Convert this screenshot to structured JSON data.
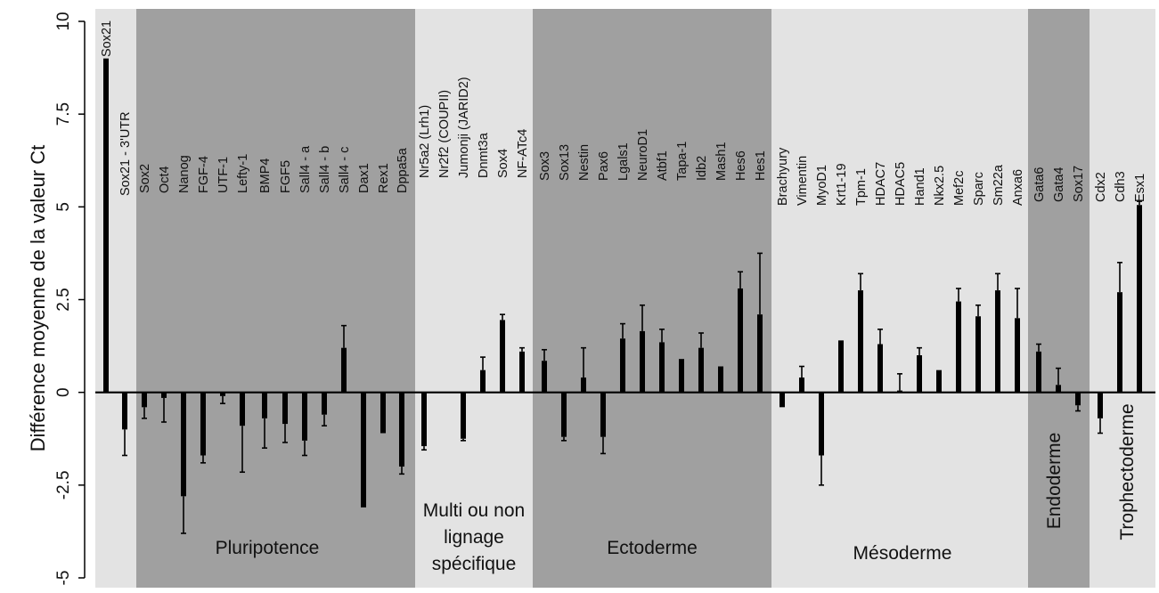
{
  "chart_data": {
    "type": "bar",
    "title": "",
    "ylabel": "Différence moyenne de la valeur Ct",
    "xlabel": "",
    "ylim": [
      -5,
      10
    ],
    "yticks": [
      "-5",
      "-2.5",
      "0",
      "2.5",
      "5",
      "7.5",
      "10"
    ],
    "yticks_values": [
      -5,
      -2.5,
      0,
      2.5,
      5,
      7.5,
      10
    ],
    "grid": false,
    "colors": {
      "dark_band": "#a0a0a0",
      "light_band": "#e3e3e3",
      "bar": "#000000"
    },
    "groups": [
      {
        "label": "",
        "shade": "light",
        "genes": [
          {
            "name": "Sox21",
            "value": 9.0,
            "err": 0
          },
          {
            "name": "Sox21 - 3'UTR",
            "value": -1.0,
            "err": 0.7
          }
        ]
      },
      {
        "label": "Pluripotence",
        "shade": "dark",
        "genes": [
          {
            "name": "Sox2",
            "value": -0.4,
            "err": 0.3
          },
          {
            "name": "Oct4",
            "value": -0.15,
            "err": 0.65
          },
          {
            "name": "Nanog",
            "value": -2.8,
            "err": 1.0
          },
          {
            "name": "FGF-4",
            "value": -1.7,
            "err": 0.2
          },
          {
            "name": "UTF-1",
            "value": -0.1,
            "err": 0.2
          },
          {
            "name": "Lefty-1",
            "value": -0.9,
            "err": 1.25
          },
          {
            "name": "BMP4",
            "value": -0.7,
            "err": 0.8
          },
          {
            "name": "FGF5",
            "value": -0.85,
            "err": 0.5
          },
          {
            "name": "Sall4 - a",
            "value": -1.3,
            "err": 0.4
          },
          {
            "name": "Sall4 - b",
            "value": -0.6,
            "err": 0.3
          },
          {
            "name": "Sall4 - c",
            "value": 1.2,
            "err": 0.6
          },
          {
            "name": "Dax1",
            "value": -3.1,
            "err": 0
          },
          {
            "name": "Rex1",
            "value": -1.1,
            "err": 0
          },
          {
            "name": "Dppa5a",
            "value": -2.0,
            "err": 0.2
          }
        ]
      },
      {
        "label": "Multi ou non lignage spécifique",
        "shade": "light",
        "genes": [
          {
            "name": "Nr5a2 (Lrh1)",
            "value": -1.45,
            "err": 0.1
          },
          {
            "name": "Nr2f2 (COUPII)",
            "value": 0,
            "err": 0
          },
          {
            "name": "Jumonji (JARID2)",
            "value": -1.25,
            "err": 0.05
          },
          {
            "name": "Dnmt3a",
            "value": 0.6,
            "err": 0.35
          },
          {
            "name": "Sox4",
            "value": 1.95,
            "err": 0.15
          },
          {
            "name": "NF-ATc4",
            "value": 1.1,
            "err": 0.1
          }
        ]
      },
      {
        "label": "Ectoderme",
        "shade": "dark",
        "genes": [
          {
            "name": "Sox3",
            "value": 0.85,
            "err": 0.3
          },
          {
            "name": "Sox13",
            "value": -1.2,
            "err": 0.1
          },
          {
            "name": "Nestin",
            "value": 0.4,
            "err": 0.8
          },
          {
            "name": "Pax6",
            "value": -1.2,
            "err": 0.45
          },
          {
            "name": "Lgals1",
            "value": 1.45,
            "err": 0.4
          },
          {
            "name": "NeuroD1",
            "value": 1.65,
            "err": 0.7
          },
          {
            "name": "Atbf1",
            "value": 1.35,
            "err": 0.35
          },
          {
            "name": "Tapa-1",
            "value": 0.9,
            "err": 0
          },
          {
            "name": "Idb2",
            "value": 1.2,
            "err": 0.4
          },
          {
            "name": "Mash1",
            "value": 0.7,
            "err": 0
          },
          {
            "name": "Hes6",
            "value": 2.8,
            "err": 0.45
          },
          {
            "name": "Hes1",
            "value": 2.1,
            "err": 1.65
          }
        ]
      },
      {
        "label": "Mésoderme",
        "shade": "light",
        "genes": [
          {
            "name": "Brachyury",
            "value": -0.4,
            "err": 0
          },
          {
            "name": "Vimentin",
            "value": 0.4,
            "err": 0.3
          },
          {
            "name": "MyoD1",
            "value": -1.7,
            "err": 0.8
          },
          {
            "name": "Krt1-19",
            "value": 1.4,
            "err": 0
          },
          {
            "name": "Tpm-1",
            "value": 2.75,
            "err": 0.45
          },
          {
            "name": "HDAC7",
            "value": 1.3,
            "err": 0.4
          },
          {
            "name": "HDAC5",
            "value": 0.05,
            "err": 0.45
          },
          {
            "name": "Hand1",
            "value": 1.0,
            "err": 0.2
          },
          {
            "name": "Nkx2.5",
            "value": 0.6,
            "err": 0
          },
          {
            "name": "Mef2c",
            "value": 2.45,
            "err": 0.35
          },
          {
            "name": "Sparc",
            "value": 2.05,
            "err": 0.3
          },
          {
            "name": "Sm22a",
            "value": 2.75,
            "err": 0.45
          },
          {
            "name": "Anxa6",
            "value": 2.0,
            "err": 0.8
          }
        ]
      },
      {
        "label": "Endoderme",
        "shade": "dark",
        "genes": [
          {
            "name": "Gata6",
            "value": 1.1,
            "err": 0.2
          },
          {
            "name": "Gata4",
            "value": 0.2,
            "err": 0.45
          },
          {
            "name": "Sox17",
            "value": -0.35,
            "err": 0.15
          }
        ]
      },
      {
        "label": "Trophectoderme",
        "shade": "light",
        "genes": [
          {
            "name": "Cdx2",
            "value": -0.7,
            "err": 0.4
          },
          {
            "name": "Cdh3",
            "value": 2.7,
            "err": 0.8
          },
          {
            "name": "Esx1",
            "value": 5.05,
            "err": 0.1
          }
        ]
      }
    ]
  }
}
